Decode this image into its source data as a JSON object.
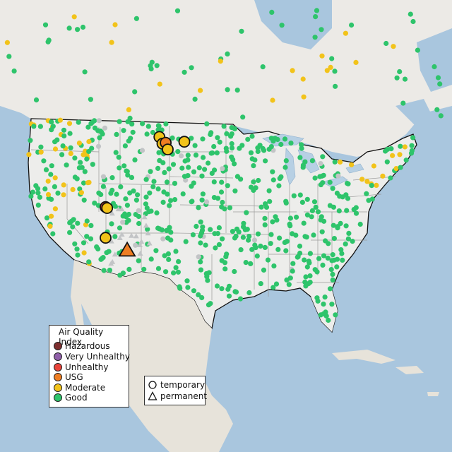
{
  "colors": {
    "ocean": "#a9c6de",
    "land": "#ededeb",
    "mexico": "#e7e3da",
    "canada": "#eceae6",
    "lake": "#b7d0e4",
    "border": "#111111",
    "state_line": "#9a9a9a"
  },
  "aqi_colors": {
    "Hazardous": "#7e2f2f",
    "Very Unhealthy": "#8f5fa8",
    "Unhealthy": "#e8443a",
    "USG": "#ee7d22",
    "Moderate": "#f2c31a",
    "Good": "#2ec46b",
    "No data": "#c2c4c6"
  },
  "legend": {
    "title": "Air Quality Index",
    "items": [
      {
        "label": "Hazardous",
        "color": "#7e2f2f"
      },
      {
        "label": "Very Unhealthy",
        "color": "#8f5fa8"
      },
      {
        "label": "Unhealthy",
        "color": "#e8443a"
      },
      {
        "label": "USG",
        "color": "#ee7d22"
      },
      {
        "label": "Moderate",
        "color": "#f2c31a"
      },
      {
        "label": "Good",
        "color": "#2ec46b"
      }
    ]
  },
  "type_legend": {
    "items": [
      {
        "label": "temporary",
        "icon": "circle-icon"
      },
      {
        "label": "permanent",
        "icon": "triangle-icon"
      }
    ]
  },
  "highlight_monitors": [
    {
      "category": "Unhealthy",
      "shape": "circle",
      "lon": -123.6,
      "lat": 40.0
    },
    {
      "category": "Moderate",
      "shape": "circle",
      "lon": -123.3,
      "lat": 39.9
    },
    {
      "category": "Moderate",
      "shape": "circle",
      "lon": -122.6,
      "lat": 36.8
    },
    {
      "category": "USG",
      "shape": "triangle",
      "lon": -118.6,
      "lat": 35.5
    },
    {
      "category": "Moderate",
      "shape": "circle",
      "lon": -116.0,
      "lat": 47.3
    },
    {
      "category": "Moderate",
      "shape": "circle",
      "lon": -115.2,
      "lat": 46.6
    },
    {
      "category": "USG",
      "shape": "circle",
      "lon": -114.6,
      "lat": 46.7
    },
    {
      "category": "Moderate",
      "shape": "circle",
      "lon": -114.0,
      "lat": 46.0
    },
    {
      "category": "Moderate",
      "shape": "circle",
      "lon": -111.0,
      "lat": 46.8
    }
  ]
}
